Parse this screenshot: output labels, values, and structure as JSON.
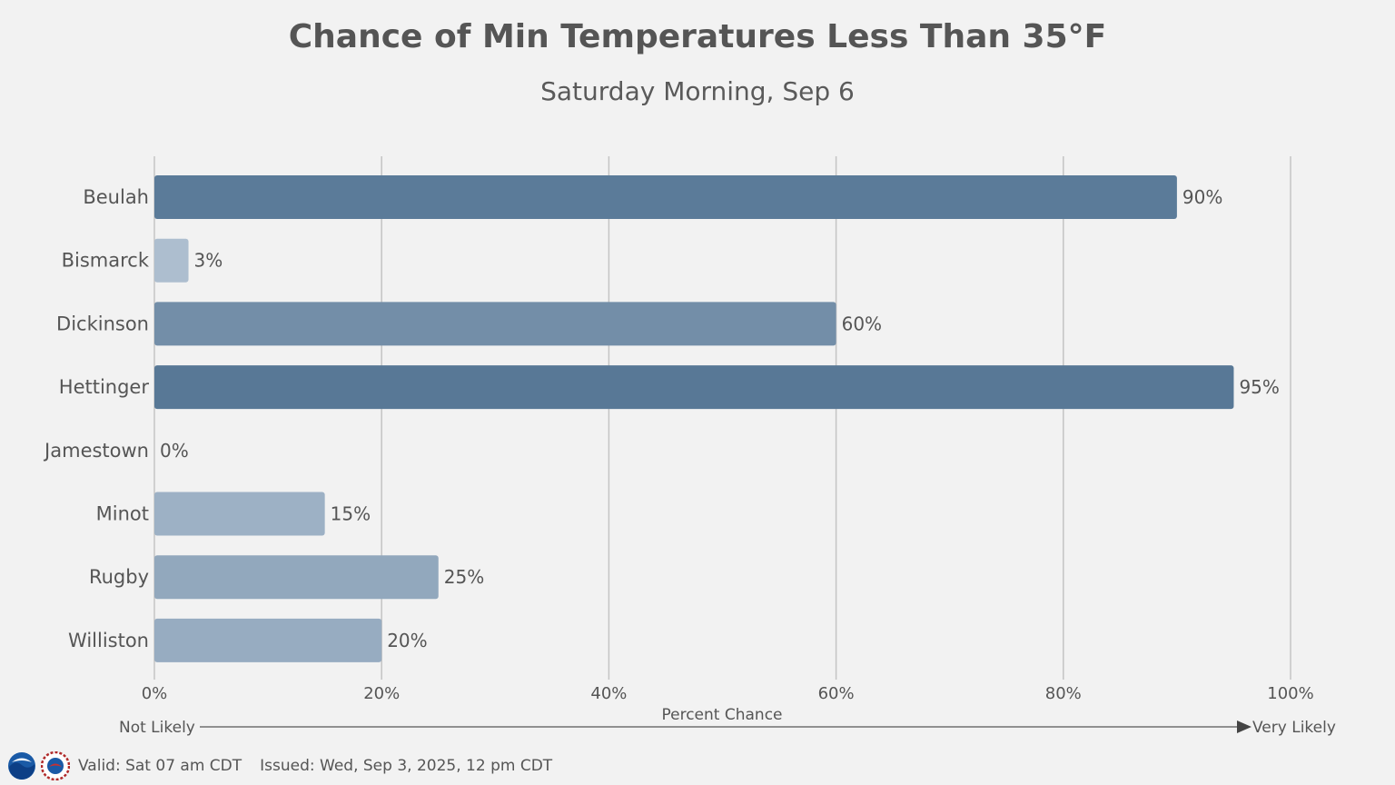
{
  "colors": {
    "background": "#f2f2f2",
    "grid": "#c4c4c4",
    "text": "#555555",
    "bar_low": "#b4c4d4",
    "bar_high": "#547594"
  },
  "chart_data": {
    "type": "bar",
    "orientation": "horizontal",
    "title": "Chance of Min Temperatures Less Than 35°F",
    "subtitle": "Saturday Morning, Sep 6",
    "categories": [
      "Beulah",
      "Bismarck",
      "Dickinson",
      "Hettinger",
      "Jamestown",
      "Minot",
      "Rugby",
      "Williston"
    ],
    "values": [
      90,
      3,
      60,
      95,
      0,
      15,
      25,
      20
    ],
    "value_labels": [
      "90%",
      "3%",
      "60%",
      "95%",
      "0%",
      "15%",
      "25%",
      "20%"
    ],
    "xlim": [
      0,
      100
    ],
    "xticks": [
      0,
      20,
      40,
      60,
      80,
      100
    ],
    "xtick_labels": [
      "0%",
      "20%",
      "40%",
      "60%",
      "80%",
      "100%"
    ],
    "xlabel": "Percent Chance",
    "scale_left_label": "Not Likely",
    "scale_right_label": "Very Likely",
    "grid": true,
    "legend": "none"
  },
  "footer": {
    "logos": [
      "noaa-logo",
      "nws-logo"
    ],
    "valid": "Valid: Sat 07 am CDT",
    "issued": "Issued: Wed, Sep 3, 2025, 12 pm CDT"
  }
}
